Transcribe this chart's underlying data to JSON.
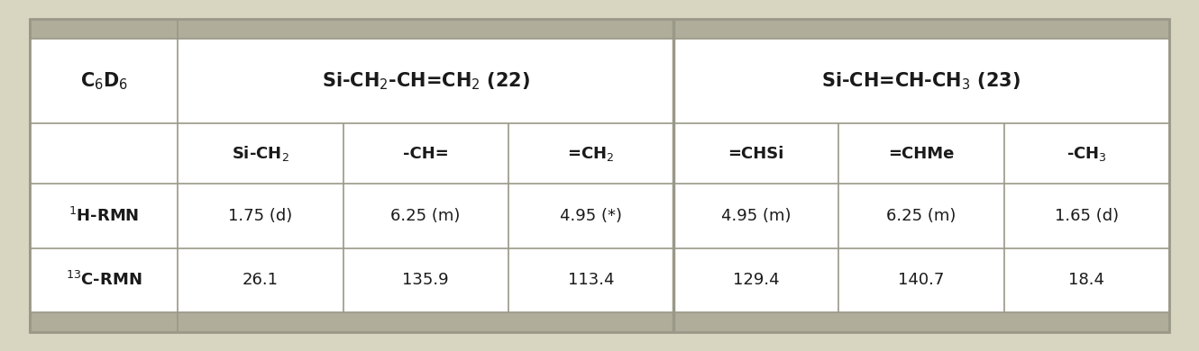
{
  "bg_outer": "#d8d5c0",
  "bg_white": "#ffffff",
  "bg_strip": "#b0ad9a",
  "bg_bottom_strip": "#e8e6d8",
  "line_color": "#9a9888",
  "text_color": "#1a1a1a",
  "figsize": [
    13.3,
    3.9
  ],
  "dpi": 100,
  "row_h1mn": [
    "1.75 (d)",
    "6.25 (m)",
    "4.95 (*)",
    "4.95 (m)",
    "6.25 (m)",
    "1.65 (d)"
  ],
  "row_c13mn": [
    "26.1",
    "135.9",
    "113.4",
    "129.4",
    "140.7",
    "18.4"
  ],
  "sub_texts": [
    "Si-CH$_2$",
    "-CH=",
    "=CH$_2$",
    "=CHSi",
    "=CHMe",
    "-CH$_3$"
  ],
  "group1_text": "Si-CH$_2$-CH=CH$_2$ (22)",
  "group2_text": "Si-CH=CH-CH$_3$ (23)",
  "col0_text": "C$_6$D$_6$",
  "row1_label": "$^1$H-RMN",
  "row2_label": "$^{13}$C-RMN"
}
